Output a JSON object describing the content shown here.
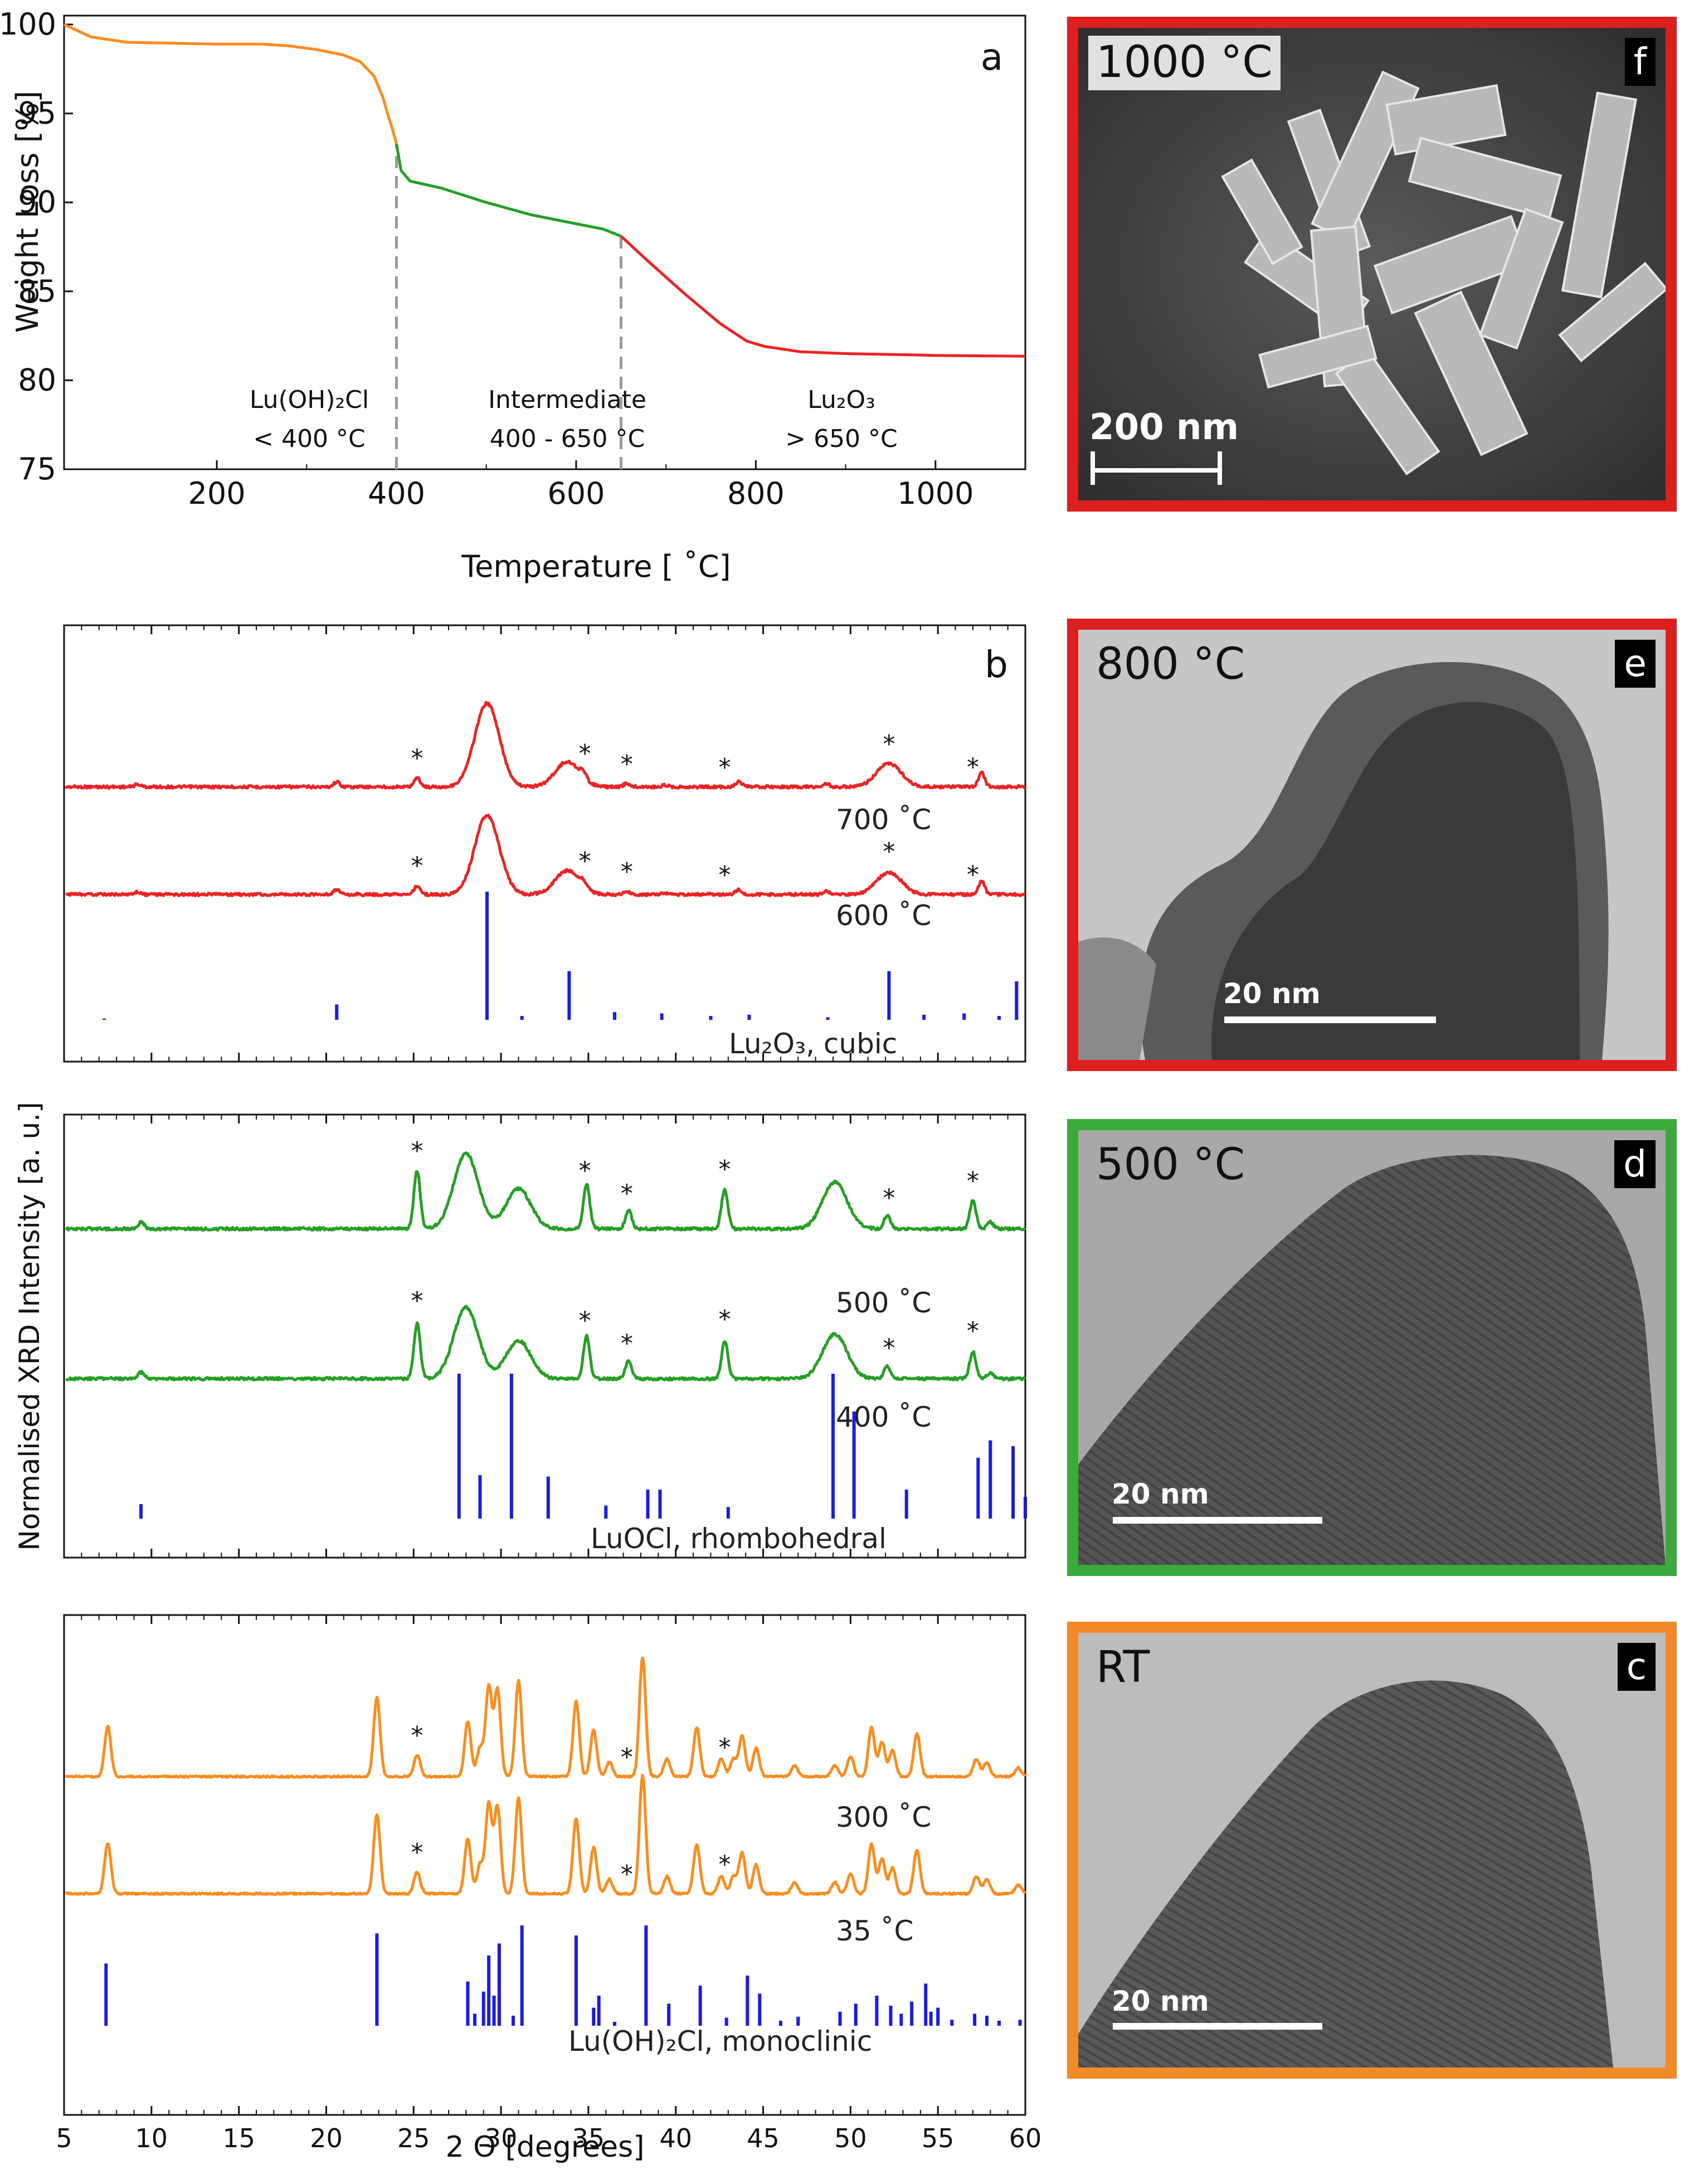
{
  "chart_data": [
    {
      "panel": "a",
      "type": "line",
      "xlabel": "Temperature [ ˚C]",
      "ylabel": "Weight Loss [%]",
      "xlim": [
        30,
        1100
      ],
      "ylim": [
        75,
        100.5
      ],
      "xticks": [
        200,
        400,
        600,
        800,
        1000
      ],
      "yticks": [
        75,
        80,
        85,
        90,
        95,
        100
      ],
      "series": [
        {
          "color": "#ff8c1a",
          "x": [
            30,
            60,
            100,
            150,
            200,
            250,
            280,
            310,
            340,
            360,
            375,
            385,
            390,
            395,
            400
          ],
          "y": [
            100,
            99.3,
            99.0,
            98.95,
            98.9,
            98.9,
            98.8,
            98.6,
            98.3,
            97.9,
            97.1,
            95.9,
            95.0,
            94.2,
            93.3
          ]
        },
        {
          "color": "#22a022",
          "x": [
            400,
            405,
            415,
            450,
            500,
            550,
            600,
            630,
            650
          ],
          "y": [
            93.3,
            91.8,
            91.2,
            90.8,
            90.0,
            89.3,
            88.8,
            88.5,
            88.1
          ]
        },
        {
          "color": "#ee2222",
          "x": [
            650,
            680,
            720,
            760,
            790,
            810,
            850,
            900,
            1000,
            1100
          ],
          "y": [
            88.1,
            86.7,
            84.9,
            83.2,
            82.2,
            81.9,
            81.6,
            81.5,
            81.4,
            81.35
          ]
        }
      ],
      "dividers": [
        400,
        650
      ],
      "region_labels": [
        {
          "line1": "Lu(OH)₂Cl",
          "line2": "< 400 °C"
        },
        {
          "line1": "Intermediate",
          "line2": "400 - 650 °C"
        },
        {
          "line1": "Lu₂O₃",
          "line2": "> 650 °C"
        }
      ]
    },
    {
      "panel": "b",
      "type": "line",
      "color": "#ee2222",
      "xlim": [
        5,
        60
      ],
      "series_labels": [
        "700 ˚C",
        "600 ˚C"
      ],
      "reference_label": "Lu₂O₃, cubic",
      "peaks": [
        [
          9.2,
          0.03
        ],
        [
          20.6,
          0.06
        ],
        [
          25.2,
          0.11
        ],
        [
          29.2,
          1.0
        ],
        [
          33.8,
          0.3
        ],
        [
          34.7,
          0.07
        ],
        [
          37.2,
          0.04
        ],
        [
          39.4,
          0.02
        ],
        [
          43.6,
          0.06
        ],
        [
          48.6,
          0.04
        ],
        [
          52.2,
          0.28
        ],
        [
          57.5,
          0.17
        ]
      ],
      "stars": [
        25.2,
        34.8,
        37.2,
        42.8,
        52.2,
        57.0
      ],
      "reference_sticks": [
        [
          7.3,
          0.01
        ],
        [
          20.6,
          0.12
        ],
        [
          29.2,
          1.0
        ],
        [
          31.2,
          0.03
        ],
        [
          33.9,
          0.38
        ],
        [
          36.5,
          0.06
        ],
        [
          39.2,
          0.05
        ],
        [
          42.0,
          0.03
        ],
        [
          44.2,
          0.04
        ],
        [
          48.7,
          0.02
        ],
        [
          52.2,
          0.38
        ],
        [
          54.2,
          0.04
        ],
        [
          56.5,
          0.05
        ],
        [
          58.5,
          0.03
        ],
        [
          59.5,
          0.3
        ]
      ]
    },
    {
      "panel": "",
      "type": "line",
      "color": "#22a022",
      "ylabel": "Normalised XRD Intensity [a. u.]",
      "xlim": [
        5,
        60
      ],
      "series_labels": [
        "500 ˚C",
        "400 ˚C"
      ],
      "reference_label": "LuOCl, rhombohedral",
      "peaks": [
        [
          9.4,
          0.04
        ],
        [
          25.2,
          0.35
        ],
        [
          28.0,
          0.45
        ],
        [
          31.0,
          0.24
        ],
        [
          34.9,
          0.27
        ],
        [
          37.3,
          0.11
        ],
        [
          42.8,
          0.24
        ],
        [
          49.1,
          0.28
        ],
        [
          52.1,
          0.08
        ],
        [
          57.0,
          0.17
        ],
        [
          58.0,
          0.04
        ]
      ],
      "stars": [
        25.2,
        34.8,
        37.2,
        42.8,
        52.2,
        57.0
      ],
      "reference_sticks": [
        [
          9.4,
          0.1
        ],
        [
          27.6,
          1.0
        ],
        [
          28.8,
          0.3
        ],
        [
          30.6,
          1.0
        ],
        [
          32.7,
          0.29
        ],
        [
          36.0,
          0.09
        ],
        [
          38.4,
          0.2
        ],
        [
          39.1,
          0.2
        ],
        [
          43.0,
          0.08
        ],
        [
          49.0,
          1.0
        ],
        [
          50.2,
          0.74
        ],
        [
          53.2,
          0.2
        ],
        [
          57.3,
          0.42
        ],
        [
          58.0,
          0.54
        ],
        [
          59.3,
          0.5
        ],
        [
          60.0,
          0.15
        ]
      ]
    },
    {
      "panel": "",
      "type": "line",
      "color": "#ff8c1a",
      "xlabel": "2 Θ [degrees]",
      "xlim": [
        5,
        60
      ],
      "xticks": [
        5,
        10,
        15,
        20,
        25,
        30,
        35,
        40,
        45,
        50,
        55,
        60
      ],
      "series_labels": [
        "300 ˚C",
        "35 ˚C"
      ],
      "reference_label": "Lu(OH)₂Cl, monoclinic",
      "peaks": [
        [
          7.5,
          0.35
        ],
        [
          22.9,
          0.55
        ],
        [
          25.2,
          0.15
        ],
        [
          28.1,
          0.38
        ],
        [
          28.8,
          0.2
        ],
        [
          29.3,
          0.62
        ],
        [
          29.8,
          0.6
        ],
        [
          31.0,
          0.66
        ],
        [
          34.3,
          0.52
        ],
        [
          35.3,
          0.32
        ],
        [
          36.2,
          0.1
        ],
        [
          38.1,
          0.82
        ],
        [
          39.5,
          0.12
        ],
        [
          41.2,
          0.34
        ],
        [
          42.6,
          0.12
        ],
        [
          43.3,
          0.12
        ],
        [
          43.8,
          0.28
        ],
        [
          44.6,
          0.2
        ],
        [
          46.8,
          0.08
        ],
        [
          49.1,
          0.08
        ],
        [
          50.0,
          0.14
        ],
        [
          51.2,
          0.34
        ],
        [
          51.8,
          0.24
        ],
        [
          52.4,
          0.18
        ],
        [
          53.8,
          0.3
        ],
        [
          57.2,
          0.12
        ],
        [
          57.8,
          0.1
        ],
        [
          59.6,
          0.06
        ]
      ],
      "stars": [
        25.2,
        37.2,
        42.8
      ],
      "reference_sticks": [
        [
          7.4,
          0.62
        ],
        [
          22.9,
          0.92
        ],
        [
          28.1,
          0.44
        ],
        [
          28.5,
          0.12
        ],
        [
          29.0,
          0.34
        ],
        [
          29.3,
          0.7
        ],
        [
          29.6,
          0.3
        ],
        [
          29.9,
          0.82
        ],
        [
          30.7,
          0.1
        ],
        [
          31.2,
          1.0
        ],
        [
          34.3,
          0.9
        ],
        [
          35.3,
          0.18
        ],
        [
          35.6,
          0.3
        ],
        [
          36.5,
          0.04
        ],
        [
          38.3,
          1.0
        ],
        [
          39.6,
          0.22
        ],
        [
          41.4,
          0.4
        ],
        [
          42.9,
          0.08
        ],
        [
          44.1,
          0.5
        ],
        [
          44.8,
          0.32
        ],
        [
          46.0,
          0.05
        ],
        [
          47.0,
          0.09
        ],
        [
          49.4,
          0.14
        ],
        [
          50.3,
          0.22
        ],
        [
          51.5,
          0.3
        ],
        [
          52.3,
          0.2
        ],
        [
          52.9,
          0.12
        ],
        [
          53.5,
          0.24
        ],
        [
          54.3,
          0.42
        ],
        [
          54.6,
          0.14
        ],
        [
          55.0,
          0.18
        ],
        [
          55.8,
          0.06
        ],
        [
          57.1,
          0.12
        ],
        [
          57.8,
          0.1
        ],
        [
          58.5,
          0.05
        ],
        [
          59.7,
          0.06
        ]
      ]
    }
  ],
  "micrographs": [
    {
      "panel": "f",
      "label": "1000 °C",
      "scale": "200 nm",
      "frame_color": "#dc2020"
    },
    {
      "panel": "e",
      "label": "800 °C",
      "scale": "20 nm",
      "frame_color": "#dc2020"
    },
    {
      "panel": "d",
      "label": "500 °C",
      "scale": "20 nm",
      "frame_color": "#3aaa3a"
    },
    {
      "panel": "c",
      "label": "RT",
      "scale": "20 nm",
      "frame_color": "#f28a2a"
    }
  ]
}
